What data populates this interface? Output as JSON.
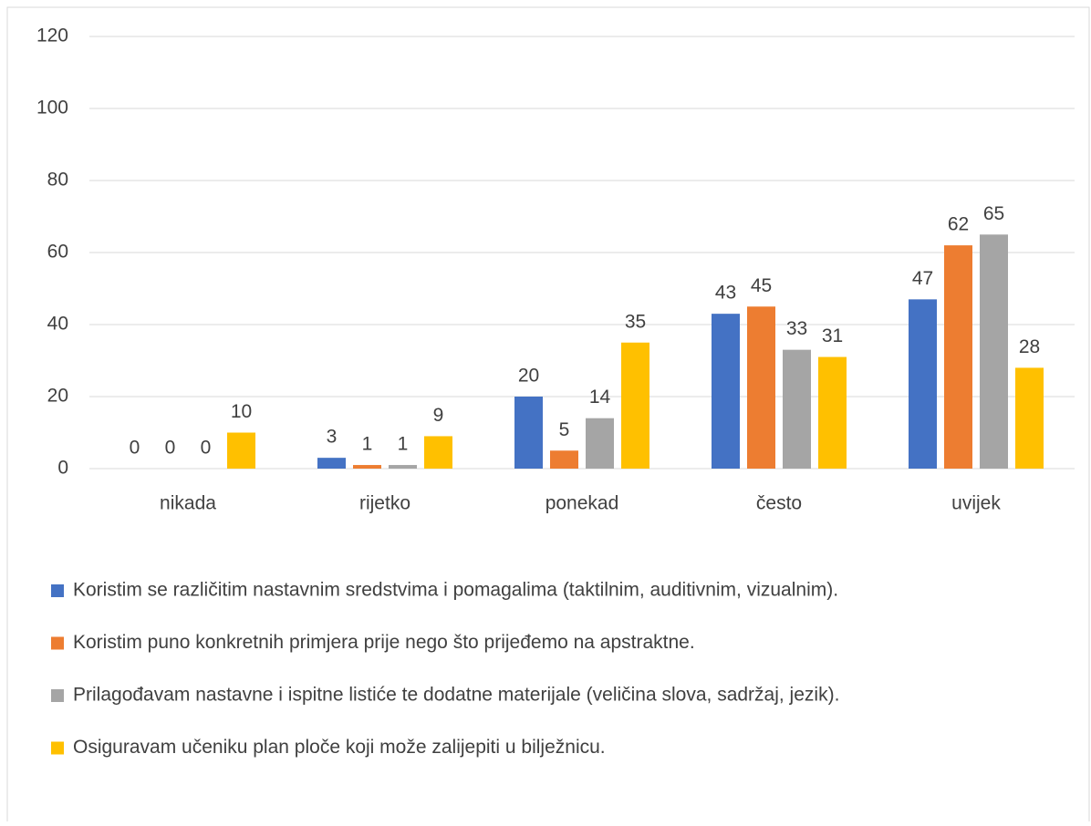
{
  "chart_data": {
    "type": "bar",
    "categories": [
      "nikada",
      "rijetko",
      "ponekad",
      "često",
      "uvijek"
    ],
    "series": [
      {
        "name": "Koristim se različitim nastavnim sredstvima i pomagalima (taktilnim, auditivnim, vizualnim).",
        "color": "#4472c4",
        "values": [
          0,
          3,
          20,
          43,
          47
        ]
      },
      {
        "name": "Koristim puno konkretnih primjera prije nego što prijeđemo na apstraktne.",
        "color": "#ed7d31",
        "values": [
          0,
          1,
          5,
          45,
          62
        ]
      },
      {
        "name": "Prilagođavam nastavne i ispitne listiće te dodatne materijale (veličina slova, sadržaj, jezik).",
        "color": "#a5a5a5",
        "values": [
          0,
          1,
          14,
          33,
          65
        ]
      },
      {
        "name": "Osiguravam učeniku plan ploče koji može zalijepiti u bilježnicu.",
        "color": "#ffc000",
        "values": [
          10,
          9,
          35,
          31,
          28
        ]
      }
    ],
    "ylim": [
      0,
      120
    ],
    "yticks": [
      0,
      20,
      40,
      60,
      80,
      100,
      120
    ],
    "grid": true,
    "legend": "bottom"
  }
}
